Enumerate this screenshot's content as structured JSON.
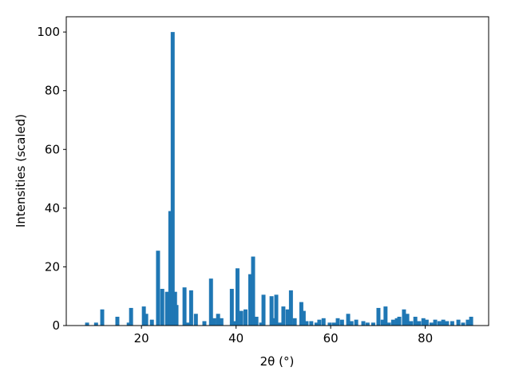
{
  "chart_data": {
    "type": "bar",
    "x_label": "2θ (°)",
    "y_label": "Intensities (scaled)",
    "color": "#1f77b4",
    "x": [
      8.5,
      10.4,
      11.7,
      14.9,
      17.3,
      17.8,
      20.5,
      21.0,
      22.2,
      23.5,
      24.4,
      25.4,
      26.1,
      26.6,
      27.1,
      27.4,
      29.1,
      29.8,
      30.5,
      31.5,
      33.3,
      34.7,
      35.4,
      36.2,
      36.9,
      39.1,
      39.6,
      40.3,
      41.1,
      42.0,
      43.0,
      43.6,
      44.3,
      45.3,
      45.8,
      47.5,
      48.2,
      48.5,
      49.2,
      50.0,
      50.9,
      51.6,
      52.4,
      53.8,
      54.3,
      54.9,
      55.9,
      57.0,
      57.6,
      58.5,
      59.8,
      60.7,
      61.5,
      62.4,
      63.7,
      64.4,
      65.4,
      66.9,
      67.8,
      69.0,
      70.1,
      71.0,
      71.6,
      72.3,
      73.2,
      74.0,
      74.5,
      75.5,
      76.2,
      77.0,
      77.9,
      78.7,
      79.6,
      80.3,
      81.3,
      82.1,
      83.0,
      83.8,
      84.6,
      85.7,
      87.0,
      88.0,
      89.0,
      89.7
    ],
    "values": [
      1,
      1,
      5.5,
      3,
      1,
      6,
      6.5,
      4,
      2,
      25.5,
      12.5,
      11.5,
      39,
      100,
      11.5,
      7,
      13,
      1,
      12,
      4,
      1.5,
      16,
      2.5,
      4,
      2.5,
      12.5,
      1.5,
      19.5,
      5,
      5.5,
      17.5,
      23.5,
      3,
      1,
      10.5,
      10,
      2.5,
      10.5,
      1,
      6.5,
      5.5,
      12,
      2.5,
      8,
      5,
      1.5,
      1.5,
      1,
      2,
      2.5,
      1,
      1,
      2.5,
      2,
      4,
      1.5,
      2,
      1.5,
      1,
      1,
      6,
      2,
      6.5,
      1,
      2,
      2.5,
      3,
      5.5,
      4,
      1.5,
      3,
      1.5,
      2.5,
      2,
      1,
      2,
      1.5,
      2,
      1.5,
      1.5,
      2,
      1,
      2,
      3
    ],
    "xlim": [
      4.1,
      93.4
    ],
    "ylim": [
      0,
      105.2
    ],
    "xticks": [
      20,
      40,
      60,
      80
    ],
    "yticks": [
      0,
      20,
      40,
      60,
      80,
      100
    ]
  }
}
